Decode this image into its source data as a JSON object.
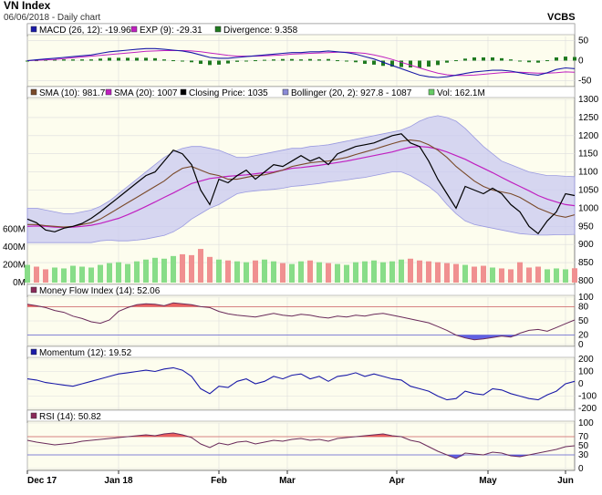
{
  "header": {
    "title": "VN Index",
    "subtitle": "06/06/2018 - Daily chart",
    "brand": "VCBS"
  },
  "chart_data": {
    "type": "line",
    "x_ticks": [
      "Dec 17",
      "Jan 18",
      "Feb",
      "Mar",
      "Apr",
      "May",
      "Jun"
    ],
    "panels": {
      "macd": {
        "legend": [
          {
            "label": "MACD (26, 12): -19.96",
            "color": "#1a1aa8"
          },
          {
            "label": "EXP (9): -29.31",
            "color": "#c020c0"
          },
          {
            "label": "Divergence: 9.358",
            "color": "#1f7a1f"
          }
        ],
        "y_ticks": [
          50,
          0,
          -50
        ],
        "ylim": [
          -60,
          60
        ],
        "macd": [
          0,
          2,
          4,
          6,
          8,
          10,
          12,
          14,
          18,
          22,
          24,
          26,
          28,
          30,
          30,
          28,
          26,
          24,
          20,
          14,
          8,
          6,
          6,
          8,
          10,
          12,
          14,
          16,
          18,
          20,
          20,
          22,
          22,
          24,
          22,
          20,
          16,
          10,
          4,
          -4,
          -12,
          -20,
          -28,
          -36,
          -40,
          -42,
          -40,
          -36,
          -32,
          -28,
          -26,
          -24,
          -24,
          -26,
          -30,
          -34,
          -36,
          -30,
          -22,
          -18,
          -20
        ],
        "exp": [
          0,
          1,
          2,
          3,
          5,
          7,
          9,
          11,
          13,
          15,
          17,
          19,
          21,
          23,
          24,
          25,
          25,
          25,
          24,
          22,
          19,
          16,
          13,
          11,
          11,
          11,
          12,
          13,
          14,
          16,
          17,
          18,
          19,
          20,
          21,
          21,
          20,
          18,
          14,
          9,
          3,
          -4,
          -11,
          -18,
          -25,
          -31,
          -35,
          -37,
          -37,
          -36,
          -34,
          -32,
          -30,
          -29,
          -29,
          -30,
          -31,
          -31,
          -30,
          -28,
          -29
        ],
        "divergence": [
          0,
          1,
          2,
          3,
          3,
          3,
          3,
          3,
          5,
          7,
          7,
          7,
          7,
          7,
          6,
          3,
          1,
          -1,
          -4,
          -8,
          -11,
          -10,
          -7,
          -3,
          -1,
          1,
          2,
          3,
          4,
          4,
          3,
          4,
          3,
          4,
          1,
          -1,
          -4,
          -8,
          -10,
          -13,
          -15,
          -16,
          -17,
          -18,
          -15,
          -11,
          -5,
          1,
          5,
          8,
          8,
          8,
          6,
          3,
          -1,
          -4,
          -5,
          1,
          8,
          10,
          9
        ]
      },
      "price": {
        "legend": [
          {
            "label": "SMA (10): 981.7",
            "color": "#7a4a2a"
          },
          {
            "label": "SMA (20): 1007",
            "color": "#c020c0"
          },
          {
            "label": "Closing Price: 1035",
            "color": "#000000"
          },
          {
            "label": "Bollinger (20, 2): 927.8 - 1087",
            "color": "#8a8ad8"
          },
          {
            "label": "Vol: 162.1M",
            "color": "#66cc66"
          }
        ],
        "y_ticks": [
          1300,
          1250,
          1200,
          1150,
          1100,
          1050,
          1000,
          950,
          900,
          850,
          800
        ],
        "ylim": [
          800,
          1300
        ],
        "vol_ticks": [
          "600M",
          "400M",
          "200M",
          "0M"
        ],
        "vol_lim": [
          0,
          700
        ],
        "close": [
          970,
          960,
          940,
          935,
          945,
          950,
          958,
          972,
          990,
          1010,
          1030,
          1050,
          1070,
          1090,
          1100,
          1130,
          1160,
          1150,
          1120,
          1050,
          1010,
          1080,
          1070,
          1090,
          1105,
          1080,
          1100,
          1120,
          1115,
          1130,
          1145,
          1130,
          1140,
          1120,
          1150,
          1160,
          1170,
          1175,
          1180,
          1190,
          1200,
          1205,
          1180,
          1170,
          1130,
          1080,
          1040,
          1000,
          1060,
          1050,
          1040,
          1055,
          1040,
          1010,
          990,
          950,
          930,
          965,
          990,
          1040,
          1035
        ],
        "sma10": [
          955,
          955,
          952,
          950,
          948,
          950,
          955,
          960,
          970,
          985,
          1000,
          1015,
          1030,
          1045,
          1060,
          1075,
          1095,
          1110,
          1115,
          1105,
          1095,
          1090,
          1080,
          1080,
          1085,
          1090,
          1092,
          1098,
          1105,
          1115,
          1120,
          1125,
          1128,
          1130,
          1135,
          1140,
          1148,
          1155,
          1162,
          1170,
          1178,
          1185,
          1188,
          1185,
          1175,
          1160,
          1140,
          1115,
          1095,
          1075,
          1060,
          1050,
          1045,
          1040,
          1030,
          1015,
          1000,
          990,
          980,
          975,
          982
        ],
        "sma20": [
          950,
          951,
          950,
          948,
          947,
          948,
          950,
          953,
          958,
          965,
          972,
          982,
          993,
          1005,
          1017,
          1030,
          1042,
          1055,
          1068,
          1075,
          1082,
          1085,
          1088,
          1090,
          1092,
          1095,
          1098,
          1100,
          1105,
          1110,
          1112,
          1115,
          1118,
          1122,
          1126,
          1130,
          1135,
          1140,
          1145,
          1150,
          1155,
          1162,
          1168,
          1170,
          1168,
          1163,
          1155,
          1145,
          1135,
          1122,
          1110,
          1098,
          1085,
          1072,
          1060,
          1048,
          1035,
          1025,
          1017,
          1010,
          1007
        ],
        "boll_upper": [
          1000,
          1000,
          995,
          990,
          985,
          985,
          990,
          995,
          1005,
          1020,
          1040,
          1060,
          1080,
          1100,
          1120,
          1140,
          1155,
          1165,
          1170,
          1170,
          1165,
          1160,
          1150,
          1140,
          1140,
          1145,
          1150,
          1155,
          1160,
          1165,
          1165,
          1170,
          1172,
          1175,
          1180,
          1185,
          1190,
          1195,
          1200,
          1205,
          1210,
          1215,
          1225,
          1240,
          1250,
          1255,
          1250,
          1240,
          1220,
          1195,
          1170,
          1150,
          1130,
          1120,
          1110,
          1100,
          1095,
          1090,
          1090,
          1088,
          1087
        ],
        "boll_lower": [
          905,
          905,
          905,
          905,
          905,
          905,
          905,
          905,
          910,
          912,
          910,
          910,
          912,
          915,
          920,
          925,
          935,
          950,
          970,
          985,
          1000,
          1010,
          1025,
          1040,
          1045,
          1048,
          1050,
          1052,
          1055,
          1060,
          1062,
          1065,
          1068,
          1072,
          1075,
          1078,
          1082,
          1085,
          1090,
          1095,
          1100,
          1100,
          1090,
          1075,
          1060,
          1040,
          1010,
          985,
          965,
          955,
          950,
          945,
          940,
          935,
          930,
          928,
          926,
          926,
          927,
          927,
          928
        ],
        "volume": [
          200,
          180,
          150,
          170,
          160,
          190,
          180,
          170,
          200,
          220,
          230,
          210,
          240,
          260,
          280,
          270,
          300,
          320,
          310,
          380,
          290,
          260,
          250,
          240,
          230,
          250,
          260,
          240,
          220,
          210,
          240,
          250,
          230,
          220,
          210,
          200,
          230,
          240,
          250,
          230,
          240,
          260,
          270,
          250,
          240,
          230,
          220,
          210,
          200,
          180,
          190,
          170,
          160,
          150,
          230,
          170,
          180,
          150,
          160,
          150,
          162
        ],
        "volume_up": [
          true,
          false,
          false,
          true,
          true,
          true,
          true,
          true,
          true,
          true,
          true,
          true,
          true,
          true,
          true,
          true,
          true,
          false,
          false,
          false,
          false,
          true,
          false,
          true,
          true,
          false,
          true,
          true,
          false,
          true,
          true,
          false,
          true,
          false,
          true,
          true,
          true,
          true,
          true,
          true,
          true,
          true,
          false,
          false,
          false,
          false,
          false,
          false,
          true,
          false,
          false,
          true,
          false,
          false,
          false,
          false,
          false,
          true,
          true,
          true,
          false
        ]
      },
      "mfi": {
        "legend": [
          {
            "label": "Money Flow Index (14): 52.06",
            "color": "#8a2a5a"
          }
        ],
        "y_ticks": [
          100,
          80,
          50,
          20,
          0
        ],
        "ylim": [
          0,
          100
        ],
        "upper": 80,
        "lower": 20,
        "values": [
          85,
          82,
          78,
          72,
          68,
          60,
          55,
          48,
          45,
          52,
          70,
          78,
          84,
          86,
          85,
          82,
          88,
          86,
          84,
          80,
          78,
          70,
          65,
          62,
          60,
          58,
          62,
          66,
          62,
          60,
          64,
          62,
          58,
          56,
          60,
          58,
          62,
          60,
          64,
          66,
          62,
          58,
          54,
          50,
          46,
          38,
          30,
          20,
          14,
          10,
          12,
          15,
          18,
          16,
          24,
          30,
          32,
          28,
          36,
          44,
          52
        ]
      },
      "momentum": {
        "legend": [
          {
            "label": "Momentum (12): 19.52",
            "color": "#1a1aa8"
          }
        ],
        "y_ticks": [
          200,
          100,
          0,
          -100,
          -200
        ],
        "ylim": [
          -200,
          200
        ],
        "values": [
          40,
          30,
          10,
          0,
          -10,
          -20,
          0,
          20,
          40,
          60,
          80,
          90,
          100,
          110,
          100,
          120,
          130,
          110,
          60,
          -40,
          -80,
          -20,
          -30,
          20,
          40,
          0,
          20,
          60,
          40,
          70,
          80,
          40,
          60,
          20,
          60,
          70,
          90,
          60,
          80,
          60,
          40,
          30,
          -20,
          -40,
          -60,
          -100,
          -130,
          -120,
          -60,
          -80,
          -90,
          -40,
          -50,
          -80,
          -100,
          -120,
          -130,
          -90,
          -60,
          0,
          20
        ]
      },
      "rsi": {
        "legend": [
          {
            "label": "RSI (14): 50.82",
            "color": "#8a2a5a"
          }
        ],
        "y_ticks": [
          100,
          70,
          50,
          30,
          0
        ],
        "ylim": [
          0,
          100
        ],
        "upper": 70,
        "lower": 30,
        "values": [
          62,
          58,
          55,
          52,
          54,
          56,
          60,
          62,
          64,
          66,
          68,
          70,
          72,
          74,
          72,
          76,
          78,
          74,
          68,
          54,
          46,
          56,
          52,
          58,
          60,
          54,
          58,
          62,
          60,
          64,
          66,
          62,
          64,
          60,
          66,
          68,
          70,
          72,
          74,
          76,
          72,
          70,
          62,
          58,
          48,
          38,
          30,
          22,
          34,
          32,
          30,
          36,
          34,
          28,
          26,
          30,
          34,
          38,
          42,
          48,
          50
        ]
      }
    }
  }
}
